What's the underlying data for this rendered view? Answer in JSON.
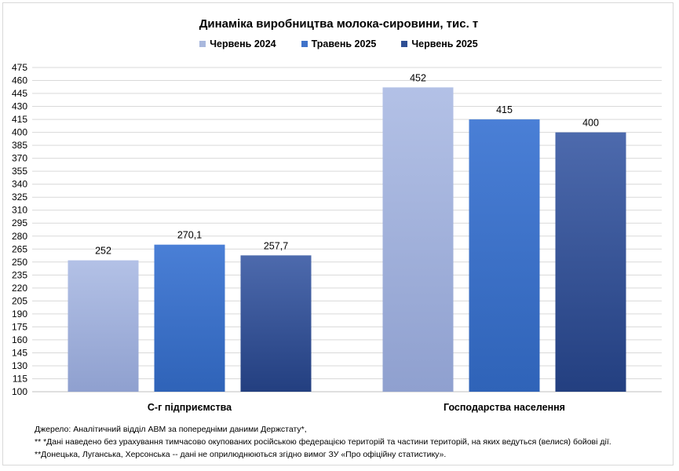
{
  "chart_data": {
    "type": "bar",
    "title": "Динаміка виробництва молока-сировини, тис. т",
    "categories": [
      "С-г підприємства",
      "Господарства населення"
    ],
    "series": [
      {
        "name": "Червень 2024",
        "values": [
          252,
          452
        ],
        "labels": [
          "252",
          "452"
        ],
        "color": "#a9b8dd"
      },
      {
        "name": "Травень 2025",
        "values": [
          270.1,
          415
        ],
        "labels": [
          "270,1",
          "415"
        ],
        "color": "#3f72c9"
      },
      {
        "name": "Червень 2025",
        "values": [
          257.7,
          400
        ],
        "labels": [
          "257,7",
          "400"
        ],
        "color": "#2e4e93"
      }
    ],
    "ylim": [
      100,
      475
    ],
    "yticks": [
      100,
      115,
      130,
      145,
      160,
      175,
      190,
      205,
      220,
      235,
      250,
      265,
      280,
      295,
      310,
      325,
      340,
      355,
      370,
      385,
      400,
      415,
      430,
      445,
      460,
      475
    ],
    "grid": true,
    "legend_position": "top"
  },
  "notes": [
    "Джерело:  Аналітичний відділ АВМ за попередніми даними Держстату*,",
    "** *Дані наведено  без урахування тимчасово окупованих російською федерацією територій та частини територій, на яких ведуться  (велися) бойові дії.",
    "**Донецька,  Луганська, Херсонська -- дані не оприлюднюються  згідно вимог ЗУ «Про офіційну статистику»."
  ]
}
